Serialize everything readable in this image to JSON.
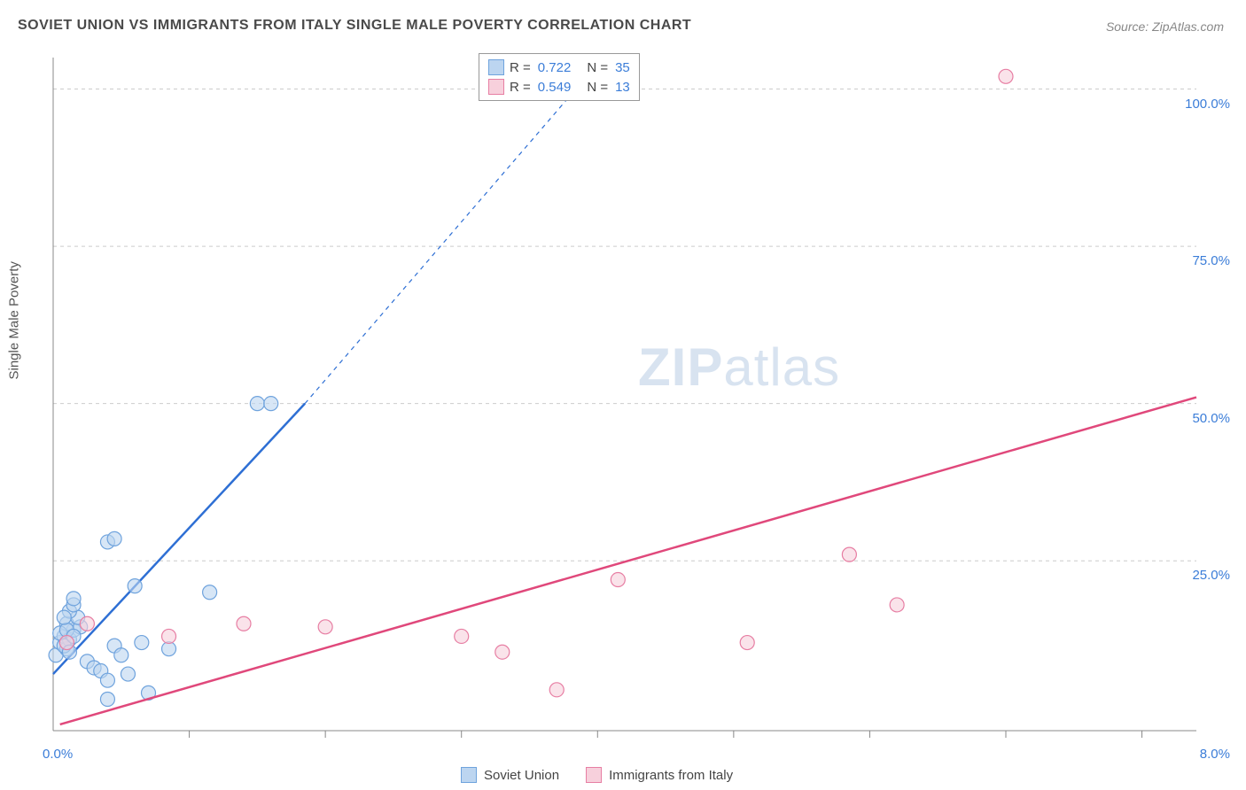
{
  "title": "SOVIET UNION VS IMMIGRANTS FROM ITALY SINGLE MALE POVERTY CORRELATION CHART",
  "source": "Source: ZipAtlas.com",
  "y_axis_label": "Single Male Poverty",
  "watermark": {
    "zip": "ZIP",
    "atlas": "atlas"
  },
  "chart": {
    "type": "scatter",
    "xlim": [
      0,
      8.4
    ],
    "ylim": [
      -2,
      105
    ],
    "x_ticks": [
      0
    ],
    "x_tick_labels": [
      "0.0%"
    ],
    "x_minor_ticks": [
      1,
      2,
      3,
      4,
      5,
      6,
      7,
      8
    ],
    "x_end_label": "8.0%",
    "y_ticks": [
      25,
      50,
      75,
      100
    ],
    "y_tick_labels": [
      "25.0%",
      "50.0%",
      "75.0%",
      "100.0%"
    ],
    "grid_color": "#cccccc",
    "axis_color": "#888888",
    "background": "#ffffff",
    "marker_radius": 8,
    "marker_stroke_width": 1.2,
    "line_width": 2.5,
    "series": [
      {
        "name": "Soviet Union",
        "color_fill": "#bcd5f0",
        "color_stroke": "#6fa3dd",
        "line_color": "#2e6fd4",
        "R": "0.722",
        "N": "35",
        "trend": {
          "x1": 0.0,
          "y1": 7,
          "x2": 1.85,
          "y2": 50,
          "x2_dash": 4.0,
          "y2_dash": 104
        },
        "points": [
          [
            0.02,
            10
          ],
          [
            0.05,
            12
          ],
          [
            0.08,
            13
          ],
          [
            0.1,
            11
          ],
          [
            0.12,
            12.5
          ],
          [
            0.15,
            14
          ],
          [
            0.1,
            15
          ],
          [
            0.05,
            13.5
          ],
          [
            0.08,
            11.5
          ],
          [
            0.12,
            10.5
          ],
          [
            0.2,
            14.5
          ],
          [
            0.18,
            16
          ],
          [
            0.25,
            9
          ],
          [
            0.3,
            8
          ],
          [
            0.35,
            7.5
          ],
          [
            0.4,
            6
          ],
          [
            0.45,
            11.5
          ],
          [
            0.5,
            10
          ],
          [
            0.55,
            7
          ],
          [
            0.12,
            17
          ],
          [
            0.15,
            18
          ],
          [
            0.6,
            21
          ],
          [
            0.65,
            12
          ],
          [
            0.85,
            11
          ],
          [
            0.4,
            28
          ],
          [
            0.45,
            28.5
          ],
          [
            1.15,
            20
          ],
          [
            0.15,
            19
          ],
          [
            0.1,
            14
          ],
          [
            0.15,
            13
          ],
          [
            0.08,
            16
          ],
          [
            0.7,
            4
          ],
          [
            0.4,
            3
          ],
          [
            1.5,
            50
          ],
          [
            1.6,
            50
          ]
        ]
      },
      {
        "name": "Immigrants from Italy",
        "color_fill": "#f7d0dc",
        "color_stroke": "#e77ea3",
        "line_color": "#e0487b",
        "R": "0.549",
        "N": "13",
        "trend": {
          "x1": 0.05,
          "y1": -1,
          "x2": 8.4,
          "y2": 51
        },
        "points": [
          [
            0.1,
            12
          ],
          [
            0.25,
            15
          ],
          [
            0.85,
            13
          ],
          [
            1.4,
            15
          ],
          [
            2.0,
            14.5
          ],
          [
            3.0,
            13
          ],
          [
            3.3,
            10.5
          ],
          [
            3.7,
            4.5
          ],
          [
            4.15,
            22
          ],
          [
            5.1,
            12
          ],
          [
            5.85,
            26
          ],
          [
            6.2,
            18
          ],
          [
            7.0,
            102
          ]
        ]
      }
    ]
  },
  "top_legend": {
    "rows": [
      {
        "swatch_fill": "#bcd5f0",
        "swatch_stroke": "#6fa3dd",
        "r_label": "R  =",
        "r_val": "0.722",
        "n_label": "N  =",
        "n_val": "35"
      },
      {
        "swatch_fill": "#f7d0dc",
        "swatch_stroke": "#e77ea3",
        "r_label": "R  =",
        "r_val": "0.549",
        "n_label": "N  =",
        "n_val": "13"
      }
    ]
  },
  "bottom_legend": [
    {
      "swatch_fill": "#bcd5f0",
      "swatch_stroke": "#6fa3dd",
      "label": "Soviet Union"
    },
    {
      "swatch_fill": "#f7d0dc",
      "swatch_stroke": "#e77ea3",
      "label": "Immigrants from Italy"
    }
  ]
}
